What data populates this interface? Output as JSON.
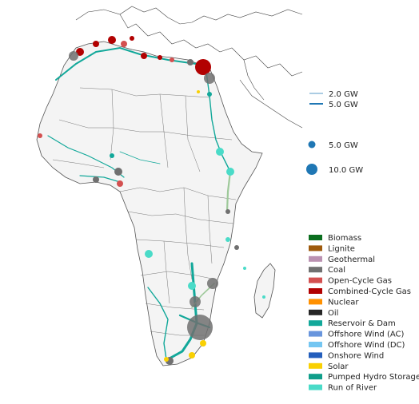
{
  "legend": {
    "line_capacity": [
      {
        "label": "2.0 GW",
        "color": "#1f77b4",
        "width_gw": 2.0
      },
      {
        "label": "5.0 GW",
        "color": "#1f77b4",
        "width_gw": 5.0
      }
    ],
    "bus_capacity": [
      {
        "label": "5.0 GW",
        "color": "#1f77b4",
        "capacity_gw": 5.0
      },
      {
        "label": "10.0 GW",
        "color": "#1f77b4",
        "capacity_gw": 10.0
      }
    ],
    "technologies": [
      {
        "label": "Biomass",
        "color": "#0b6e1f"
      },
      {
        "label": "Lignite",
        "color": "#9e5a0c"
      },
      {
        "label": "Geothermal",
        "color": "#ba91b1"
      },
      {
        "label": "Coal",
        "color": "#707070"
      },
      {
        "label": "Open-Cycle Gas",
        "color": "#d35050"
      },
      {
        "label": "Combined-Cycle Gas",
        "color": "#b20101"
      },
      {
        "label": "Nuclear",
        "color": "#ff9000"
      },
      {
        "label": "Oil",
        "color": "#262626"
      },
      {
        "label": "Reservoir & Dam",
        "color": "#12a89a"
      },
      {
        "label": "Offshore Wind (AC)",
        "color": "#6895dd"
      },
      {
        "label": "Offshore Wind (DC)",
        "color": "#74c6f2"
      },
      {
        "label": "Onshore Wind",
        "color": "#235ebc"
      },
      {
        "label": "Solar",
        "color": "#f9d002"
      },
      {
        "label": "Pumped Hydro Storage",
        "color": "#0f9e8a"
      },
      {
        "label": "Run of River",
        "color": "#4adbc8"
      }
    ]
  }
}
